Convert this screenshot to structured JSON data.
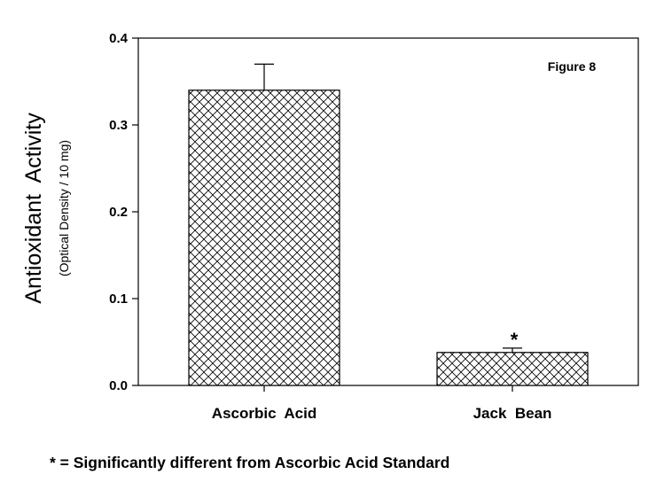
{
  "chart_data": {
    "type": "bar",
    "categories": [
      "Ascorbic  Acid",
      "Jack  Bean"
    ],
    "values": [
      0.34,
      0.038
    ],
    "error": [
      0.03,
      0.005
    ],
    "significance": [
      "",
      "*"
    ],
    "ylabel": "Antioxidant  Activity",
    "ylabel_sub": "(Optical Density / 10 mg)",
    "ylim": [
      0,
      0.4
    ],
    "yticks": [
      "0.0",
      "0.1",
      "0.2",
      "0.3",
      "0.4"
    ],
    "bar_pattern": "crosshatch",
    "bar_fill": "#ffffff",
    "bar_stroke": "#000000",
    "grid": false,
    "annotation": "Figure 8"
  },
  "footnote": "* = Significantly different from Ascorbic Acid Standard"
}
